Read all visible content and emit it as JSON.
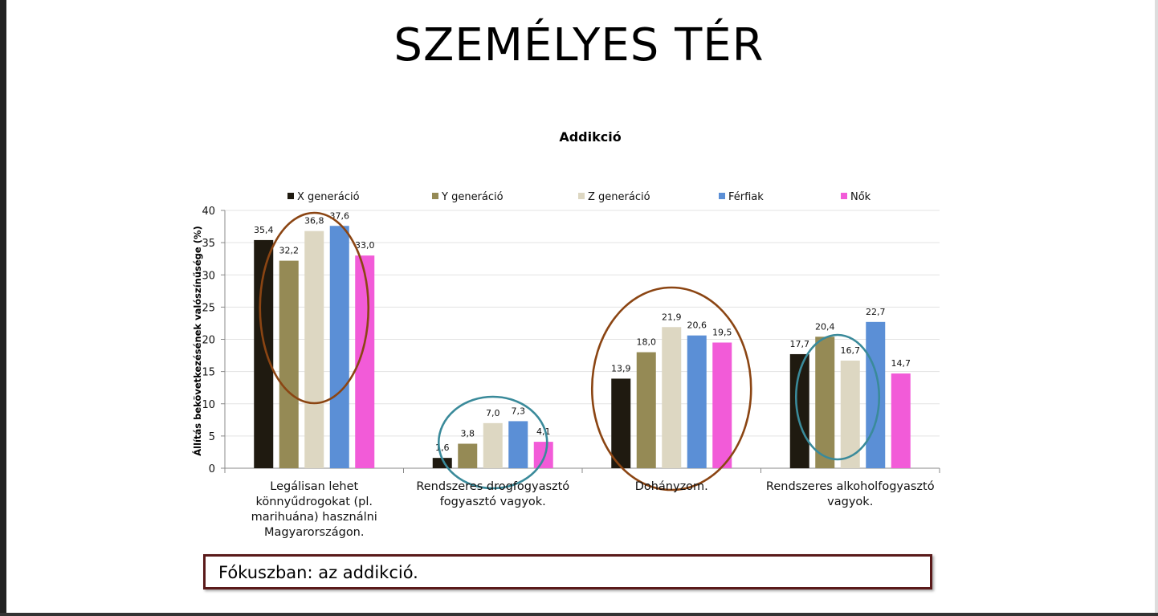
{
  "slide_title": "SZEMÉLYES TÉR",
  "focus_text": "Fókuszban: az addikció.",
  "chart_data": {
    "type": "bar",
    "title": "Addikció",
    "ylabel": "Állítás bekövetkezésének valószínűsége (%)",
    "xlabel": "",
    "ylim": [
      0,
      40
    ],
    "yticks": [
      0,
      5,
      10,
      15,
      20,
      25,
      30,
      35,
      40
    ],
    "grid": true,
    "legend_position": "top",
    "categories": [
      "Legálisan lehet könnyűdrogokat (pl. marihuána) használni Magyarországon.",
      "Rendszeres drogfogyasztó fogyasztó vagyok.",
      "Dohányzom.",
      "Rendszeres alkoholfogyasztó vagyok."
    ],
    "category_lines": [
      [
        "Legálisan lehet",
        "könnyűdrogokat (pl.",
        "marihuána) használni",
        "Magyarországon."
      ],
      [
        "Rendszeres drogfogyasztó",
        "fogyasztó vagyok."
      ],
      [
        "Dohányzom."
      ],
      [
        "Rendszeres alkoholfogyasztó",
        "vagyok."
      ]
    ],
    "series": [
      {
        "name": "X generáció",
        "color": "#1f1a10",
        "values": [
          35.4,
          1.6,
          13.9,
          17.7
        ],
        "labels": [
          "35,4",
          "1,6",
          "13,9",
          "17,7"
        ]
      },
      {
        "name": "Y generáció",
        "color": "#958a55",
        "values": [
          32.2,
          3.8,
          18.0,
          20.4
        ],
        "labels": [
          "32,2",
          "3,8",
          "18,0",
          "20,4"
        ]
      },
      {
        "name": "Z generáció",
        "color": "#ddd7c2",
        "values": [
          36.8,
          7.0,
          21.9,
          16.7
        ],
        "labels": [
          "36,8",
          "7,0",
          "21,9",
          "16,7"
        ]
      },
      {
        "name": "Férfiak",
        "color": "#5b8fd6",
        "values": [
          37.6,
          7.3,
          20.6,
          22.7
        ],
        "labels": [
          "37,6",
          "7,3",
          "20,6",
          "22,7"
        ]
      },
      {
        "name": "Nők",
        "color": "#f25bd8",
        "values": [
          33.0,
          4.1,
          19.5,
          14.7
        ],
        "labels": [
          "33,0",
          "4,1",
          "19,5",
          "14,7"
        ]
      }
    ],
    "annotations": [
      {
        "shape": "ellipse",
        "color": "#8b4513",
        "category": 0,
        "series_from": 1,
        "series_to": 3
      },
      {
        "shape": "ellipse",
        "color": "#3a8a9a",
        "category": 1,
        "series_from": 1,
        "series_to": 3
      },
      {
        "shape": "ellipse",
        "color": "#8b4513",
        "category": 2,
        "series_from": 0,
        "series_to": 4
      },
      {
        "shape": "ellipse",
        "color": "#3a8a9a",
        "category": 3,
        "series_from": 1,
        "series_to": 2
      }
    ]
  }
}
